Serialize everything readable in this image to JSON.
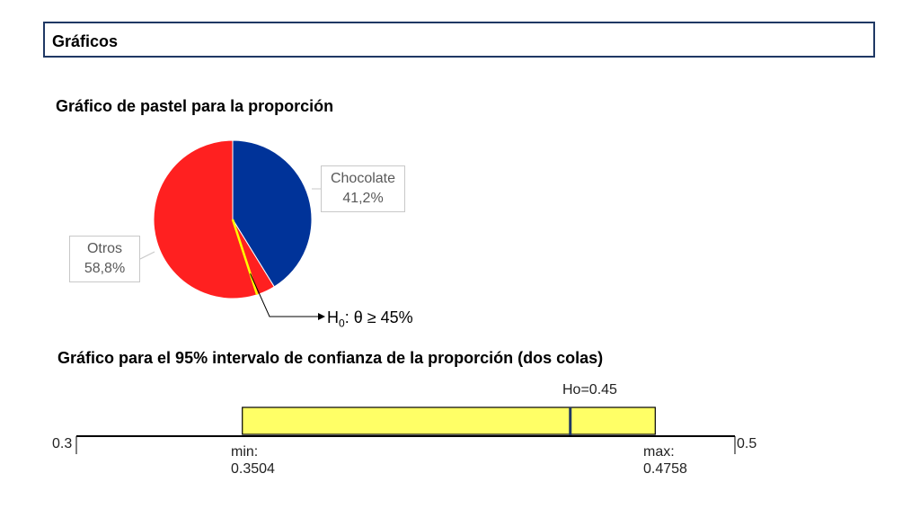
{
  "header": {
    "title": "Gráficos"
  },
  "pie_section": {
    "title": "Gráfico de pastel para la proporción",
    "hypothesis": {
      "prefix": "H",
      "subscript": "0",
      "text": ": θ ≥ 45%"
    }
  },
  "ci_section": {
    "title": "Gráfico para el 95% intervalo de confianza de la proporción (dos colas)"
  },
  "chart_data": [
    {
      "type": "pie",
      "slices": [
        {
          "label": "Chocolate",
          "value": 41.2,
          "value_label": "41,2%",
          "color": "#003399"
        },
        {
          "label": "Otros",
          "value": 58.8,
          "value_label": "58,8%",
          "color": "#ff2020"
        }
      ],
      "reference_line": {
        "value": 45,
        "color": "#ffff00"
      }
    },
    {
      "type": "interval",
      "axis": {
        "min": 0.3,
        "max": 0.5,
        "min_label": "0.3",
        "max_label": "0.5"
      },
      "interval": {
        "min": 0.3504,
        "max": 0.4758,
        "min_label": "min:",
        "min_value": "0.3504",
        "max_label": "max:",
        "max_value": "0.4758",
        "color": "#ffff66"
      },
      "hypothesis": {
        "value": 0.45,
        "label": "Ho=0.45",
        "color": "#1f3864"
      }
    }
  ]
}
